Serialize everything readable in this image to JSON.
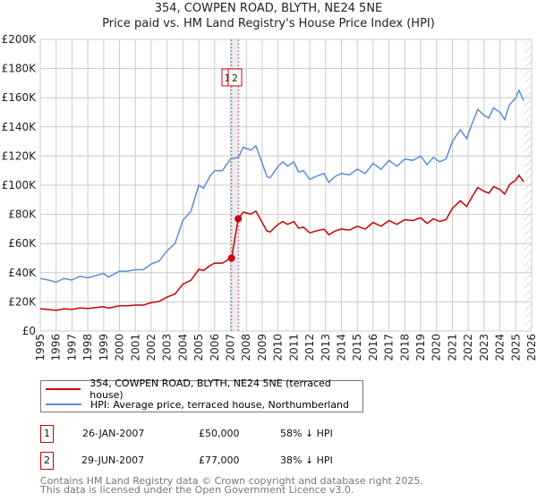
{
  "chart_data": {
    "type": "line",
    "title": "354, COWPEN ROAD, BLYTH, NE24 5NE",
    "subtitle": "Price paid vs. HM Land Registry's House Price Index (HPI)",
    "xlim": [
      1995,
      2026
    ],
    "ylim": [
      0,
      200000
    ],
    "x_ticks": [
      "1995",
      "1996",
      "1997",
      "1998",
      "1999",
      "2000",
      "2001",
      "2002",
      "2003",
      "2004",
      "2005",
      "2006",
      "2007",
      "2008",
      "2009",
      "2010",
      "2011",
      "2012",
      "2013",
      "2014",
      "2015",
      "2016",
      "2017",
      "2018",
      "2019",
      "2020",
      "2021",
      "2022",
      "2023",
      "2024",
      "2025",
      "2026"
    ],
    "y_ticks": [
      {
        "v": 0,
        "label": "£0"
      },
      {
        "v": 20000,
        "label": "£20K"
      },
      {
        "v": 40000,
        "label": "£40K"
      },
      {
        "v": 60000,
        "label": "£60K"
      },
      {
        "v": 80000,
        "label": "£80K"
      },
      {
        "v": 100000,
        "label": "£100K"
      },
      {
        "v": 120000,
        "label": "£120K"
      },
      {
        "v": 140000,
        "label": "£140K"
      },
      {
        "v": 160000,
        "label": "£160K"
      },
      {
        "v": 180000,
        "label": "£180K"
      },
      {
        "v": 200000,
        "label": "£200K"
      }
    ],
    "grid": true,
    "series": [
      {
        "name": "HPI: Average price, terraced house, Northumberland",
        "color": "#5b8fd4",
        "x": [
          1995,
          1995.5,
          1996,
          1996.5,
          1997,
          1997.5,
          1998,
          1998.5,
          1999,
          1999.3,
          2000,
          2000.5,
          2001,
          2001.5,
          2002,
          2002.5,
          2003,
          2003.5,
          2004,
          2004.5,
          2005,
          2005.3,
          2005.7,
          2006,
          2006.5,
          2007,
          2007.5,
          2007.8,
          2008.3,
          2008.6,
          2009,
          2009.3,
          2009.5,
          2010,
          2010.3,
          2010.6,
          2011,
          2011.3,
          2011.6,
          2012,
          2012.4,
          2012.9,
          2013.2,
          2013.6,
          2014,
          2014.5,
          2015,
          2015.5,
          2016,
          2016.5,
          2017,
          2017.5,
          2018,
          2018.5,
          2019,
          2019.4,
          2019.8,
          2020.2,
          2020.6,
          2021,
          2021.5,
          2021.9,
          2022.2,
          2022.6,
          2023,
          2023.3,
          2023.6,
          2024,
          2024.3,
          2024.6,
          2025,
          2025.2,
          2025.5
        ],
        "y": [
          36000,
          35000,
          33500,
          36000,
          35000,
          37500,
          36500,
          38000,
          39500,
          37000,
          41000,
          41000,
          42000,
          42000,
          46000,
          48000,
          55000,
          60000,
          76000,
          82000,
          100000,
          98000,
          106000,
          110000,
          110000,
          118000,
          119000,
          126000,
          124000,
          127000,
          115000,
          106000,
          105000,
          113000,
          116000,
          113000,
          116000,
          109000,
          110000,
          104000,
          106000,
          108000,
          102000,
          106000,
          108000,
          107000,
          111000,
          108000,
          115000,
          111000,
          117000,
          113000,
          118000,
          117000,
          120000,
          114000,
          119000,
          116000,
          118000,
          130000,
          138000,
          132000,
          141000,
          152000,
          148000,
          146000,
          153000,
          150000,
          145000,
          155000,
          160000,
          165000,
          158000
        ]
      },
      {
        "name": "354, COWPEN ROAD, BLYTH, NE24 5NE (terraced house)",
        "color": "#cc0000",
        "derived_from_hpi": true
      }
    ],
    "sales": [
      {
        "id": "1",
        "x": 2007.07,
        "date": "26-JAN-2007",
        "price": 50000,
        "price_label": "£50,000",
        "hpi_label": "58% ↓ HPI"
      },
      {
        "id": "2",
        "x": 2007.49,
        "date": "29-JUN-2007",
        "price": 77000,
        "price_label": "£77,000",
        "hpi_label": "38% ↓ HPI"
      }
    ],
    "forecast_start": 2025.55,
    "legend_position": "bottom"
  },
  "footer": [
    "Contains HM Land Registry data © Crown copyright and database right 2025.",
    "This data is licensed under the Open Government Licence v3.0."
  ]
}
